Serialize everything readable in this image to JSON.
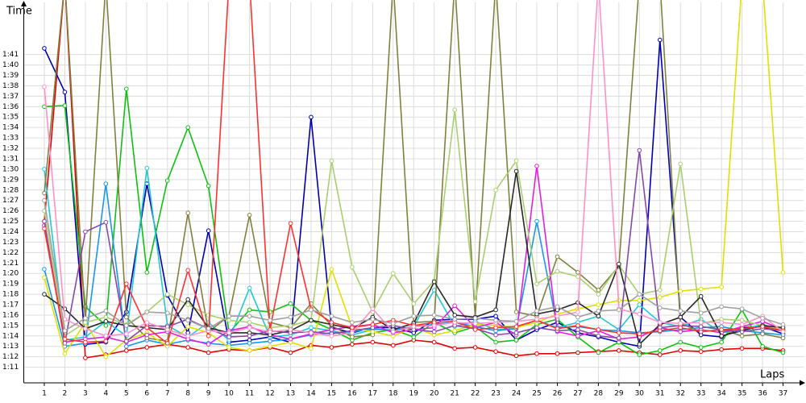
{
  "chart_data": {
    "type": "line",
    "y_label": "Time",
    "x_label": "Laps",
    "xlim": [
      0,
      38
    ],
    "ylim": [
      69.5,
      106
    ],
    "grid": true,
    "x": [
      1,
      2,
      3,
      4,
      5,
      6,
      7,
      8,
      9,
      10,
      11,
      12,
      13,
      14,
      15,
      16,
      17,
      18,
      19,
      20,
      21,
      22,
      23,
      24,
      25,
      26,
      27,
      28,
      29,
      30,
      31,
      32,
      33,
      34,
      35,
      36,
      37
    ],
    "xticks": [
      1,
      2,
      3,
      4,
      5,
      6,
      7,
      8,
      9,
      10,
      11,
      12,
      13,
      14,
      15,
      16,
      17,
      18,
      19,
      20,
      21,
      22,
      23,
      24,
      25,
      26,
      27,
      28,
      29,
      30,
      31,
      32,
      33,
      34,
      35,
      36,
      37
    ],
    "yticks": [
      {
        "value": 71,
        "label": "1:11"
      },
      {
        "value": 72,
        "label": "1:12"
      },
      {
        "value": 73,
        "label": "1:13"
      },
      {
        "value": 74,
        "label": "1:14"
      },
      {
        "value": 75,
        "label": "1:15"
      },
      {
        "value": 76,
        "label": "1:16"
      },
      {
        "value": 77,
        "label": "1:17"
      },
      {
        "value": 78,
        "label": "1:18"
      },
      {
        "value": 79,
        "label": "1:19"
      },
      {
        "value": 80,
        "label": "1:20"
      },
      {
        "value": 81,
        "label": "1:21"
      },
      {
        "value": 82,
        "label": "1:22"
      },
      {
        "value": 83,
        "label": "1:23"
      },
      {
        "value": 84,
        "label": "1:24"
      },
      {
        "value": 85,
        "label": "1:25"
      },
      {
        "value": 86,
        "label": "1:26"
      },
      {
        "value": 87,
        "label": "1:27"
      },
      {
        "value": 88,
        "label": "1:28"
      },
      {
        "value": 89,
        "label": "1:29"
      },
      {
        "value": 90,
        "label": "1:30"
      },
      {
        "value": 91,
        "label": "1:31"
      },
      {
        "value": 92,
        "label": "1:32"
      },
      {
        "value": 93,
        "label": "1:33"
      },
      {
        "value": 94,
        "label": "1:34"
      },
      {
        "value": 95,
        "label": "1:35"
      },
      {
        "value": 96,
        "label": "1:36"
      },
      {
        "value": 97,
        "label": "1:37"
      },
      {
        "value": 98,
        "label": "1:38"
      },
      {
        "value": 99,
        "label": "1:39"
      },
      {
        "value": 100,
        "label": "1:40"
      },
      {
        "value": 101,
        "label": "1:41"
      }
    ],
    "series": [
      {
        "color": "#e00000",
        "values": [
          85.0,
          108,
          71.9,
          72.2,
          72.6,
          72.9,
          73.2,
          72.9,
          72.4,
          72.7,
          72.6,
          72.9,
          72.4,
          73.1,
          72.9,
          73.2,
          73.4,
          73.1,
          73.6,
          73.4,
          72.8,
          72.9,
          72.5,
          72.1,
          72.3,
          72.3,
          72.4,
          72.5,
          72.6,
          72.4,
          72.2,
          72.6,
          72.5,
          72.7,
          72.8,
          72.8,
          72.6
        ]
      },
      {
        "color": "#0000b0",
        "values": [
          101.6,
          97.4,
          73.2,
          73.4,
          76.3,
          88.6,
          77.9,
          74.3,
          84.1,
          73.4,
          73.6,
          73.9,
          73.4,
          95.0,
          74.8,
          74.3,
          74.8,
          74.8,
          74.3,
          75.5,
          75.6,
          75.6,
          75.9,
          73.6,
          74.6,
          75.3,
          74.3,
          73.9,
          73.4,
          73.0,
          102.4,
          75.8,
          74.1,
          73.9,
          74.8,
          74.9,
          74.2
        ]
      },
      {
        "color": "#10c010",
        "values": [
          96.0,
          96.1,
          76.8,
          75.0,
          97.7,
          80.1,
          88.9,
          94.0,
          88.4,
          74.3,
          76.5,
          76.3,
          77.1,
          75.5,
          74.6,
          73.6,
          74.3,
          74.6,
          73.9,
          75.3,
          74.3,
          74.9,
          73.4,
          73.6,
          75.1,
          75.6,
          73.9,
          72.4,
          73.4,
          72.2,
          72.6,
          73.4,
          72.9,
          73.4,
          76.5,
          73.0,
          72.4
        ]
      },
      {
        "color": "#20c8d8",
        "values": [
          90.0,
          73.6,
          73.9,
          75.4,
          74.0,
          90.1,
          75.0,
          73.9,
          75.3,
          73.6,
          78.6,
          73.9,
          74.1,
          74.8,
          74.5,
          74.1,
          74.6,
          74.6,
          74.9,
          78.4,
          74.9,
          75.4,
          74.6,
          74.8,
          75.5,
          74.8,
          75.3,
          75.9,
          74.6,
          77.0,
          75.3,
          74.9,
          75.6,
          74.3,
          74.6,
          75.1,
          74.6
        ]
      },
      {
        "color": "#1898e8",
        "values": [
          80.4,
          73.0,
          73.3,
          88.6,
          73.0,
          73.6,
          73.2,
          73.6,
          73.3,
          73.1,
          73.3,
          73.5,
          73.7,
          74.1,
          74.3,
          74.4,
          74.7,
          74.5,
          74.9,
          75.1,
          75.3,
          74.9,
          74.5,
          74.7,
          85.0,
          74.8,
          74.9,
          74.6,
          74.5,
          74.3,
          74.4,
          74.6,
          74.8,
          74.9,
          74.5,
          74.3,
          74.1
        ]
      },
      {
        "color": "#808040",
        "values": [
          87.7,
          108,
          75.4,
          108,
          75.8,
          73.8,
          73.5,
          85.8,
          74.4,
          75.9,
          85.6,
          75.3,
          74.8,
          77.1,
          75.0,
          73.9,
          74.1,
          108,
          75.3,
          75.4,
          108,
          75.8,
          108,
          76.3,
          75.9,
          81.6,
          80.1,
          78.4,
          80.7,
          108,
          108,
          75.2,
          74.4,
          74.6,
          74.0,
          74.2,
          73.8
        ]
      },
      {
        "color": "#e0e000",
        "values": [
          79.6,
          72.3,
          75.3,
          72.0,
          73.6,
          74.3,
          73.0,
          74.9,
          74.3,
          72.9,
          72.6,
          73.0,
          73.4,
          72.8,
          80.4,
          74.8,
          74.4,
          74.0,
          74.8,
          74.1,
          74.5,
          75.1,
          75.0,
          74.8,
          75.3,
          76.1,
          76.6,
          77.0,
          77.4,
          77.4,
          77.7,
          78.3,
          78.5,
          78.7,
          108,
          108,
          80.1
        ]
      },
      {
        "color": "#e020e0",
        "values": [
          84.6,
          73.4,
          73.7,
          73.9,
          73.4,
          74.1,
          74.4,
          73.7,
          73.2,
          74.5,
          74.9,
          74.1,
          73.7,
          74.2,
          74.6,
          74.9,
          75.1,
          74.3,
          74.6,
          74.8,
          76.9,
          74.8,
          75.3,
          74.1,
          90.3,
          74.4,
          74.0,
          74.5,
          73.7,
          73.9,
          74.8,
          74.4,
          74.6,
          74.3,
          74.9,
          75.4,
          74.6
        ]
      },
      {
        "color": "#a8d070",
        "values": [
          86.0,
          74.0,
          75.3,
          75.8,
          75.1,
          76.3,
          78.0,
          77.0,
          76.0,
          75.5,
          75.3,
          74.8,
          75.0,
          75.5,
          90.8,
          80.6,
          76.3,
          80.0,
          77.1,
          79.3,
          95.7,
          77.3,
          88.0,
          90.8,
          79.0,
          80.2,
          79.7,
          78.0,
          80.8,
          78.0,
          78.4,
          90.5,
          75.2,
          75.6,
          75.5,
          75.0,
          74.6
        ]
      },
      {
        "color": "#282828",
        "values": [
          78.0,
          76.6,
          74.7,
          75.4,
          75.0,
          74.8,
          74.6,
          77.5,
          74.8,
          74.3,
          74.3,
          74.1,
          74.5,
          75.5,
          75.1,
          74.7,
          75.8,
          74.6,
          75.2,
          79.2,
          76.0,
          75.8,
          76.5,
          89.8,
          76.1,
          76.5,
          77.2,
          75.9,
          80.9,
          73.2,
          75.1,
          75.8,
          77.8,
          74.0,
          74.5,
          75.0,
          74.8
        ]
      },
      {
        "color": "#8848a8",
        "values": [
          85.0,
          73.3,
          84.0,
          84.9,
          73.5,
          75.0,
          74.9,
          75.6,
          74.7,
          73.9,
          74.0,
          74.5,
          74.3,
          74.4,
          74.2,
          74.5,
          74.8,
          75.0,
          74.6,
          74.4,
          75.0,
          74.7,
          74.1,
          74.3,
          74.8,
          74.5,
          74.6,
          74.0,
          73.8,
          91.8,
          74.8,
          75.0,
          74.9,
          74.6,
          74.4,
          74.7,
          74.5
        ]
      },
      {
        "color": "#ff3030",
        "values": [
          84.3,
          73.7,
          73.4,
          73.5,
          79.0,
          74.8,
          73.3,
          80.3,
          74.0,
          108,
          108,
          74.6,
          84.8,
          76.6,
          75.3,
          74.8,
          75.1,
          75.5,
          75.0,
          75.3,
          75.4,
          74.6,
          74.8,
          74.9,
          75.5,
          74.7,
          75.0,
          74.6,
          74.3,
          74.2,
          74.5,
          74.8,
          74.4,
          74.6,
          74.7,
          74.9,
          74.5
        ]
      },
      {
        "color": "#ff90c8",
        "values": [
          97.9,
          75.6,
          74.7,
          74.0,
          74.2,
          75.3,
          74.6,
          74.0,
          74.5,
          74.3,
          74.8,
          74.4,
          74.6,
          74.3,
          74.0,
          74.3,
          76.6,
          74.4,
          74.9,
          75.0,
          75.3,
          75.2,
          75.3,
          75.4,
          75.6,
          75.9,
          76.3,
          108,
          76.6,
          76.1,
          75.3,
          75.2,
          75.3,
          75.3,
          75.1,
          75.9,
          74.4
        ]
      },
      {
        "color": "#a0a0a0",
        "values": [
          87.0,
          74.5,
          75.7,
          76.4,
          75.0,
          76.3,
          76.2,
          75.5,
          74.7,
          75.9,
          75.9,
          75.5,
          75.8,
          76.5,
          75.9,
          75.3,
          75.6,
          75.2,
          75.9,
          76.0,
          75.6,
          75.7,
          75.5,
          75.4,
          76.4,
          76.8,
          75.8,
          76.4,
          76.5,
          78.0,
          76.7,
          76.4,
          76.2,
          76.8,
          76.6,
          75.7,
          75.1
        ]
      }
    ]
  }
}
